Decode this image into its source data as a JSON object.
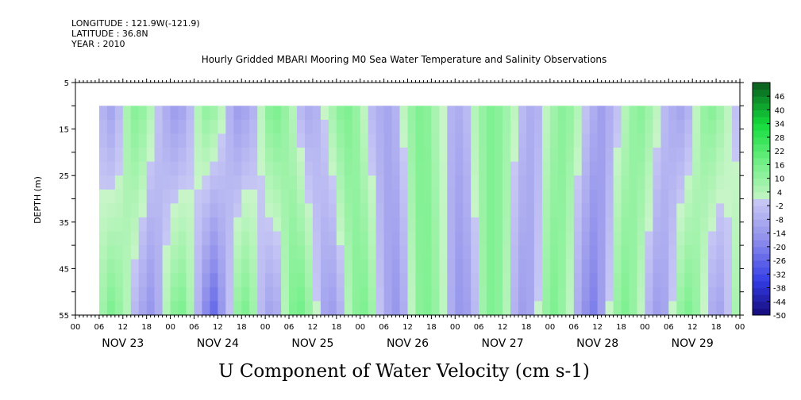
{
  "header": {
    "longitude": "LONGITUDE : 121.9W(-121.9)",
    "latitude": "LATITUDE : 36.8N",
    "year": "YEAR : 2010",
    "title": "Hourly Gridded MBARI Mooring M0 Sea Water Temperature and Salinity Observations"
  },
  "chart_data": {
    "type": "heatmap",
    "title": "Hourly Gridded MBARI Mooring M0 Sea Water Temperature and Salinity Observations",
    "xlabel": "U Component of Water Velocity (cm s-1)",
    "ylabel": "DEPTH (m)",
    "x_range_hours_from_nov23_00": [
      0,
      168
    ],
    "data_start_hour": 6,
    "y_range_depth_m": [
      5,
      55
    ],
    "data_depth_range_m": [
      10,
      55
    ],
    "y_ticks": [
      "5",
      "15",
      "25",
      "35",
      "45",
      "55"
    ],
    "x_hour_ticks": [
      "00",
      "06",
      "12",
      "18",
      "00",
      "06",
      "12",
      "18",
      "00",
      "06",
      "12",
      "18",
      "00",
      "06",
      "12",
      "18",
      "00",
      "06",
      "12",
      "18",
      "00",
      "06",
      "12",
      "18",
      "00",
      "06",
      "12",
      "18",
      "00"
    ],
    "x_day_labels": [
      "NOV 23",
      "NOV 24",
      "NOV 25",
      "NOV 26",
      "NOV 27",
      "NOV 28",
      "NOV 29"
    ],
    "colorbar_labels": [
      "46",
      "40",
      "34",
      "28",
      "22",
      "16",
      "10",
      "4",
      "-2",
      "-8",
      "-14",
      "-20",
      "-26",
      "-32",
      "-38",
      "-44",
      "-50"
    ],
    "colorbar_range": [
      -50,
      52
    ],
    "colorbar_step": 3,
    "velocity_by_hour": {
      "hours": [
        6,
        8,
        10,
        12,
        14,
        16,
        18,
        20,
        22,
        24,
        26,
        28,
        30,
        32,
        34,
        36,
        38,
        40,
        42,
        44,
        46,
        48,
        50,
        52,
        54,
        56,
        58,
        60,
        62,
        64,
        66,
        68,
        70,
        72,
        74,
        76,
        78,
        80,
        82,
        84,
        86,
        88,
        90,
        92,
        94,
        96,
        98,
        100,
        102,
        104,
        106,
        108,
        110,
        112,
        114,
        116,
        118,
        120,
        122,
        124,
        126,
        128,
        130,
        132,
        134,
        136,
        138,
        140,
        142,
        144,
        146,
        148,
        150,
        152,
        154,
        156,
        158,
        160,
        162,
        164,
        166,
        168
      ],
      "surface_values": [
        -6,
        -10,
        -4,
        6,
        12,
        10,
        4,
        -2,
        -8,
        -12,
        -10,
        -4,
        4,
        10,
        8,
        2,
        -6,
        -12,
        -10,
        -6,
        2,
        12,
        14,
        10,
        4,
        -4,
        -8,
        -6,
        0,
        6,
        12,
        14,
        10,
        2,
        -4,
        -8,
        -10,
        -6,
        2,
        10,
        14,
        12,
        6,
        0,
        -6,
        -8,
        -4,
        4,
        10,
        14,
        12,
        8,
        2,
        -4,
        -8,
        -6,
        2,
        8,
        12,
        10,
        4,
        -2,
        -8,
        -12,
        -8,
        -2,
        4,
        10,
        12,
        8,
        2,
        -4,
        -8,
        -10,
        -6,
        2,
        10,
        12,
        8,
        2,
        -2,
        4
      ],
      "deep_values": [
        8,
        14,
        10,
        4,
        -4,
        -10,
        -14,
        -8,
        4,
        12,
        14,
        6,
        -6,
        -18,
        -24,
        -14,
        -2,
        10,
        14,
        8,
        -4,
        -10,
        -8,
        4,
        14,
        16,
        10,
        0,
        -10,
        -12,
        -6,
        4,
        12,
        14,
        8,
        -2,
        -10,
        -14,
        -8,
        2,
        12,
        14,
        10,
        2,
        -8,
        -14,
        -12,
        -4,
        8,
        14,
        12,
        4,
        -6,
        -12,
        -10,
        0,
        10,
        14,
        10,
        2,
        -8,
        -16,
        -20,
        -12,
        0,
        10,
        14,
        10,
        2,
        -6,
        -12,
        -10,
        0,
        10,
        14,
        10,
        0,
        -8,
        -10,
        -2,
        6,
        4
      ]
    }
  }
}
